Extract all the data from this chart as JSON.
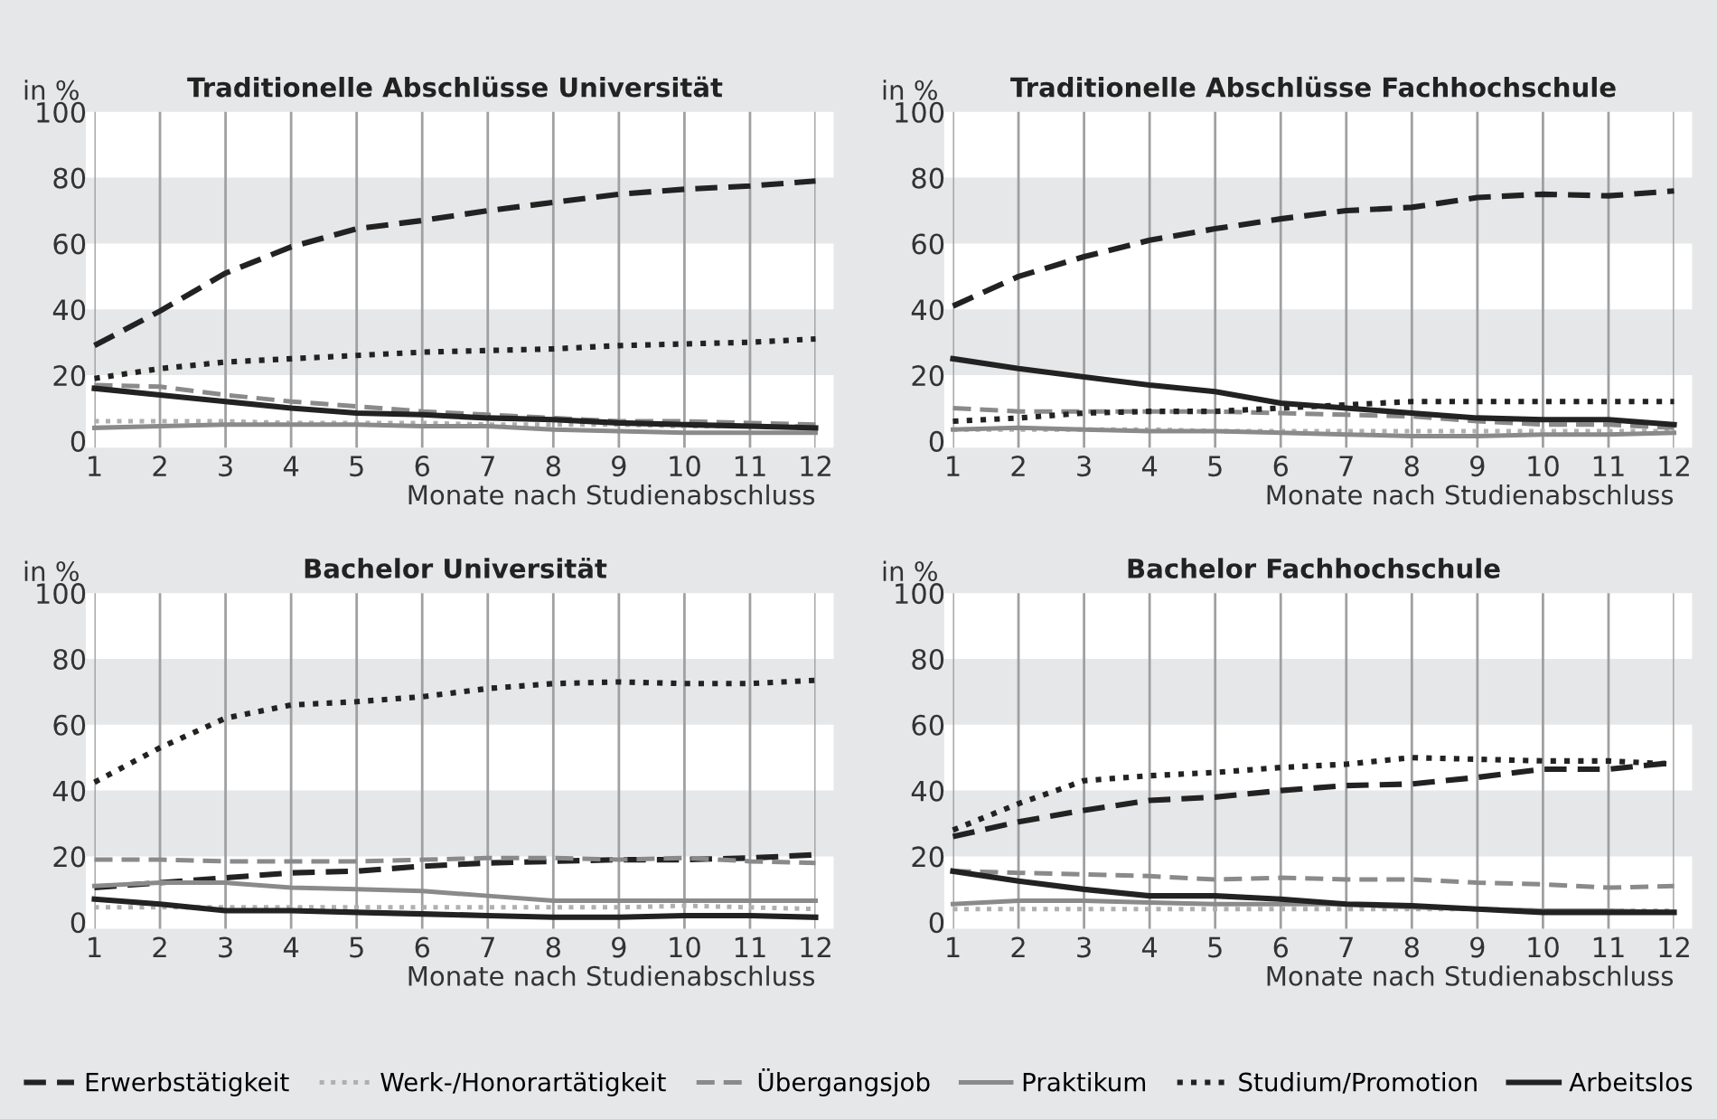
{
  "chart_data": [
    {
      "type": "line",
      "title": "Traditionelle Abschlüsse Universität",
      "ylabel": "in %",
      "xlabel": "Monate nach Studienabschluss",
      "x": [
        1,
        2,
        3,
        4,
        5,
        6,
        7,
        8,
        9,
        10,
        11,
        12
      ],
      "xlim": [
        1,
        12
      ],
      "ylim": [
        -2,
        100
      ],
      "xticks": [
        1,
        2,
        3,
        4,
        5,
        6,
        7,
        8,
        9,
        10,
        11,
        12
      ],
      "yticks": [
        0,
        20,
        40,
        60,
        80,
        100
      ],
      "grid": true,
      "legend": "bottom",
      "marker": "none",
      "series": [
        {
          "name": "Erwerbstätigkeit",
          "color": "#222222",
          "line_style": "dashed",
          "values": [
            29,
            39.5,
            51,
            59,
            64.5,
            67,
            70,
            72.5,
            75,
            76.5,
            77.5,
            79
          ]
        },
        {
          "name": "Werk-/Honorartätigkeit",
          "color": "#b0b0b0",
          "line_style": "dotted",
          "values": [
            6,
            6,
            6,
            5.5,
            5.5,
            5.5,
            5,
            5,
            5,
            4.5,
            4.5,
            4.5
          ]
        },
        {
          "name": "Übergangsjob",
          "color": "#8a8a8a",
          "line_style": "dashed",
          "values": [
            17,
            16.5,
            14,
            12,
            10.5,
            9,
            8,
            7,
            6,
            6,
            5.5,
            5
          ]
        },
        {
          "name": "Praktikum",
          "color": "#8a8a8a",
          "line_style": "solid",
          "values": [
            4,
            4.5,
            5,
            5,
            5,
            4.5,
            4.5,
            3.5,
            3,
            2.5,
            2.5,
            2.5
          ]
        },
        {
          "name": "Studium/Promotion",
          "color": "#222222",
          "line_style": "dotted",
          "values": [
            19,
            22,
            24,
            25,
            26,
            27,
            27.5,
            28,
            29,
            29.5,
            30,
            31
          ]
        },
        {
          "name": "Arbeitslos",
          "color": "#222222",
          "line_style": "solid",
          "values": [
            16,
            14,
            12,
            10,
            8.5,
            8,
            7,
            6.5,
            5.5,
            5,
            4.5,
            4
          ]
        }
      ]
    },
    {
      "type": "line",
      "title": "Traditionelle Abschlüsse Fachhochschule",
      "ylabel": "in %",
      "xlabel": "Monate nach Studienabschluss",
      "x": [
        1,
        2,
        3,
        4,
        5,
        6,
        7,
        8,
        9,
        10,
        11,
        12
      ],
      "xlim": [
        1,
        12
      ],
      "ylim": [
        -2,
        100
      ],
      "xticks": [
        1,
        2,
        3,
        4,
        5,
        6,
        7,
        8,
        9,
        10,
        11,
        12
      ],
      "yticks": [
        0,
        20,
        40,
        60,
        80,
        100
      ],
      "grid": true,
      "marker": "none",
      "series": [
        {
          "name": "Erwerbstätigkeit",
          "color": "#222222",
          "line_style": "dashed",
          "values": [
            41,
            50,
            56,
            61,
            64.5,
            67.5,
            70,
            71,
            74,
            75,
            74.5,
            76
          ]
        },
        {
          "name": "Werk-/Honorartätigkeit",
          "color": "#b0b0b0",
          "line_style": "dotted",
          "values": [
            3.5,
            3.5,
            3.5,
            3.5,
            3,
            3,
            3,
            3,
            3,
            3,
            3,
            3
          ]
        },
        {
          "name": "Übergangsjob",
          "color": "#8a8a8a",
          "line_style": "dashed",
          "values": [
            10,
            9,
            9,
            9,
            9,
            8.5,
            8,
            7.5,
            6,
            5,
            5,
            4
          ]
        },
        {
          "name": "Praktikum",
          "color": "#8a8a8a",
          "line_style": "solid",
          "values": [
            3.5,
            4,
            3.5,
            3,
            3,
            2.5,
            2,
            1.5,
            1.5,
            2,
            2,
            2.5
          ]
        },
        {
          "name": "Studium/Promotion",
          "color": "#222222",
          "line_style": "dotted",
          "values": [
            6,
            7,
            8.5,
            9,
            9,
            10,
            11,
            12,
            12,
            12,
            12,
            12
          ]
        },
        {
          "name": "Arbeitslos",
          "color": "#222222",
          "line_style": "solid",
          "values": [
            25,
            22,
            19.5,
            17,
            15,
            11.5,
            10,
            8.5,
            7,
            6.5,
            6.5,
            5
          ]
        }
      ]
    },
    {
      "type": "line",
      "title": "Bachelor Universität",
      "ylabel": "in %",
      "xlabel": "Monate nach Studienabschluss",
      "x": [
        1,
        2,
        3,
        4,
        5,
        6,
        7,
        8,
        9,
        10,
        11,
        12
      ],
      "xlim": [
        1,
        12
      ],
      "ylim": [
        -2,
        100
      ],
      "xticks": [
        1,
        2,
        3,
        4,
        5,
        6,
        7,
        8,
        9,
        10,
        11,
        12
      ],
      "yticks": [
        0,
        20,
        40,
        60,
        80,
        100
      ],
      "grid": true,
      "marker": "none",
      "series": [
        {
          "name": "Erwerbstätigkeit",
          "color": "#222222",
          "line_style": "dashed",
          "values": [
            10.5,
            12,
            13.5,
            15,
            15.5,
            17,
            18,
            18.5,
            19,
            19,
            19.5,
            20.5
          ]
        },
        {
          "name": "Werk-/Honorartätigkeit",
          "color": "#b0b0b0",
          "line_style": "dotted",
          "values": [
            4.5,
            4.5,
            4.5,
            4.5,
            4.5,
            4.5,
            4.5,
            4.5,
            4.5,
            5,
            4.5,
            4
          ]
        },
        {
          "name": "Übergangsjob",
          "color": "#8a8a8a",
          "line_style": "dashed",
          "values": [
            19,
            19,
            18.5,
            18.5,
            18.5,
            19,
            19.5,
            19.5,
            19,
            19.5,
            18.5,
            18
          ]
        },
        {
          "name": "Praktikum",
          "color": "#8a8a8a",
          "line_style": "solid",
          "values": [
            11,
            12,
            12,
            10.5,
            10,
            9.5,
            8,
            6.5,
            6.5,
            6.5,
            6.5,
            6.5
          ]
        },
        {
          "name": "Studium/Promotion",
          "color": "#222222",
          "line_style": "dotted",
          "values": [
            42.5,
            53,
            62,
            66,
            67,
            68.5,
            71,
            72.5,
            73,
            72.5,
            72.5,
            73.5
          ]
        },
        {
          "name": "Arbeitslos",
          "color": "#222222",
          "line_style": "solid",
          "values": [
            7,
            5.5,
            3.5,
            3.5,
            3,
            2.5,
            2,
            1.5,
            1.5,
            2,
            2,
            1.5
          ]
        }
      ]
    },
    {
      "type": "line",
      "title": "Bachelor Fachhochschule",
      "ylabel": "in %",
      "xlabel": "Monate nach Studienabschluss",
      "x": [
        1,
        2,
        3,
        4,
        5,
        6,
        7,
        8,
        9,
        10,
        11,
        12
      ],
      "xlim": [
        1,
        12
      ],
      "ylim": [
        -2,
        100
      ],
      "xticks": [
        1,
        2,
        3,
        4,
        5,
        6,
        7,
        8,
        9,
        10,
        11,
        12
      ],
      "yticks": [
        0,
        20,
        40,
        60,
        80,
        100
      ],
      "grid": true,
      "marker": "none",
      "series": [
        {
          "name": "Erwerbstätigkeit",
          "color": "#222222",
          "line_style": "dashed",
          "values": [
            26,
            30.5,
            34,
            37,
            38,
            40,
            41.5,
            42,
            44,
            46.5,
            46.5,
            48.5
          ]
        },
        {
          "name": "Werk-/Honorartätigkeit",
          "color": "#b0b0b0",
          "line_style": "dotted",
          "values": [
            4,
            4,
            4,
            4,
            4,
            4,
            4,
            4,
            4,
            3.5,
            3.5,
            3.5
          ]
        },
        {
          "name": "Übergangsjob",
          "color": "#8a8a8a",
          "line_style": "dashed",
          "values": [
            15.5,
            15,
            14.5,
            14,
            13,
            13.5,
            13,
            13,
            12,
            11.5,
            10.5,
            11
          ]
        },
        {
          "name": "Praktikum",
          "color": "#8a8a8a",
          "line_style": "solid",
          "values": [
            5.5,
            6.5,
            6.5,
            6,
            5.5,
            5.5,
            5.5,
            4.5,
            4,
            3.5,
            3.5,
            3
          ]
        },
        {
          "name": "Studium/Promotion",
          "color": "#222222",
          "line_style": "dotted",
          "values": [
            28,
            36,
            43,
            44.5,
            45.5,
            47,
            48,
            50,
            49.5,
            49,
            49,
            48
          ]
        },
        {
          "name": "Arbeitslos",
          "color": "#222222",
          "line_style": "solid",
          "values": [
            15.5,
            12.5,
            10,
            8,
            8,
            7,
            5.5,
            5,
            4,
            3,
            3,
            3
          ]
        }
      ]
    }
  ]
}
